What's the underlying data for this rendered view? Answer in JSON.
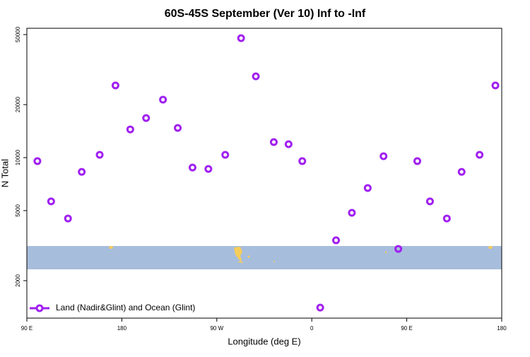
{
  "chart_data": {
    "type": "scatter",
    "title": "60S-45S September (Ver 10)   Inf to -Inf",
    "x_label": "Longitude (deg E)",
    "y_label": "N Total",
    "y_log": true,
    "legend": "bottom-left",
    "xlim": [
      90,
      540
    ],
    "xticks": [
      {
        "value": 90,
        "label": "90 E"
      },
      180,
      {
        "value": 270,
        "label": "90 W"
      },
      {
        "value": 360,
        "label": "0"
      },
      {
        "value": 450,
        "label": "90 E"
      },
      {
        "value": 540,
        "label": "180"
      }
    ],
    "ylim": [
      1225,
      54300
    ],
    "yticks": [
      2000,
      5000,
      10000,
      20000,
      50000
    ],
    "series": [
      {
        "name": "Land (Nadir&Glint) and Ocean (Glint)",
        "color": "#a020f0",
        "x": [
          100,
          113,
          129,
          142,
          159,
          174,
          188,
          203,
          219,
          233,
          247,
          262,
          278,
          293,
          307,
          324,
          338,
          351,
          368,
          383,
          398,
          413,
          428,
          442,
          460,
          472,
          488,
          502,
          519,
          534
        ],
        "values": [
          9550,
          5640,
          4510,
          8300,
          10370,
          25700,
          14460,
          16780,
          21350,
          14740,
          8780,
          8620,
          10370,
          47700,
          28960,
          12250,
          11920,
          9550,
          1406,
          3390,
          4860,
          6720,
          10180,
          3030,
          9550,
          5640,
          4510,
          8300,
          10370,
          25700
        ]
      }
    ]
  }
}
